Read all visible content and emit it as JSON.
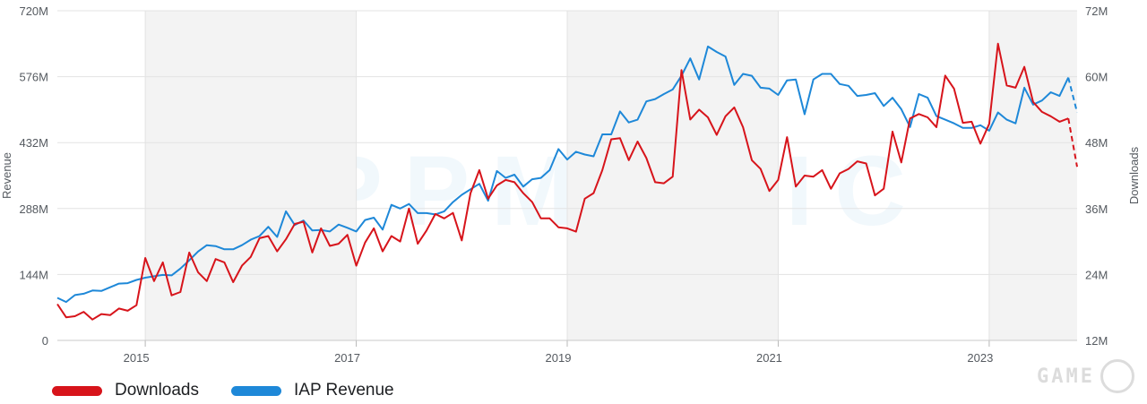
{
  "chart_data": {
    "type": "line",
    "watermark": "APPMAGIC",
    "y_left": {
      "label": "Revenue",
      "ticks": [
        "0",
        "144M",
        "288M",
        "432M",
        "576M",
        "720M"
      ],
      "range": [
        0,
        720
      ]
    },
    "y_right": {
      "label": "Downloads",
      "ticks": [
        "12M",
        "24M",
        "36M",
        "48M",
        "60M",
        "72M"
      ],
      "range": [
        12,
        72
      ]
    },
    "x_axis": {
      "ticks": [
        "2015",
        "2017",
        "2019",
        "2021",
        "2023"
      ],
      "range": [
        "2014-03",
        "2023-11"
      ]
    },
    "shaded_bands": [
      [
        "2015-01",
        "2016-12"
      ],
      [
        "2019-01",
        "2020-12"
      ],
      [
        "2023-01",
        "2023-11"
      ]
    ],
    "grid": true,
    "legend_position": "bottom-left",
    "series": [
      {
        "name": "Downloads",
        "axis": "right",
        "color": "#d7141b",
        "forecast_from": "2023-10",
        "points": [
          [
            "2014-03",
            18.6
          ],
          [
            "2014-04",
            16.2
          ],
          [
            "2014-05",
            16.4
          ],
          [
            "2014-06",
            17.2
          ],
          [
            "2014-07",
            15.8
          ],
          [
            "2014-08",
            16.8
          ],
          [
            "2014-09",
            16.6
          ],
          [
            "2014-10",
            17.8
          ],
          [
            "2014-11",
            17.4
          ],
          [
            "2014-12",
            18.4
          ],
          [
            "2015-01",
            27.0
          ],
          [
            "2015-02",
            22.8
          ],
          [
            "2015-03",
            26.2
          ],
          [
            "2015-04",
            20.2
          ],
          [
            "2015-05",
            20.8
          ],
          [
            "2015-06",
            28.0
          ],
          [
            "2015-07",
            24.4
          ],
          [
            "2015-08",
            22.8
          ],
          [
            "2015-09",
            26.8
          ],
          [
            "2015-10",
            26.2
          ],
          [
            "2015-11",
            22.6
          ],
          [
            "2015-12",
            25.6
          ],
          [
            "2016-01",
            27.2
          ],
          [
            "2016-02",
            30.6
          ],
          [
            "2016-03",
            31.0
          ],
          [
            "2016-04",
            28.2
          ],
          [
            "2016-05",
            30.4
          ],
          [
            "2016-06",
            33.2
          ],
          [
            "2016-07",
            33.6
          ],
          [
            "2016-08",
            28.0
          ],
          [
            "2016-09",
            32.4
          ],
          [
            "2016-10",
            29.2
          ],
          [
            "2016-11",
            29.6
          ],
          [
            "2016-12",
            31.2
          ],
          [
            "2017-01",
            25.6
          ],
          [
            "2017-02",
            29.8
          ],
          [
            "2017-03",
            32.4
          ],
          [
            "2017-04",
            28.2
          ],
          [
            "2017-05",
            31.0
          ],
          [
            "2017-06",
            30.0
          ],
          [
            "2017-07",
            36.0
          ],
          [
            "2017-08",
            29.6
          ],
          [
            "2017-09",
            32.0
          ],
          [
            "2017-10",
            35.0
          ],
          [
            "2017-11",
            34.2
          ],
          [
            "2017-12",
            35.2
          ],
          [
            "2018-01",
            30.2
          ],
          [
            "2018-02",
            38.8
          ],
          [
            "2018-03",
            43.0
          ],
          [
            "2018-04",
            37.8
          ],
          [
            "2018-05",
            40.2
          ],
          [
            "2018-06",
            41.2
          ],
          [
            "2018-07",
            40.8
          ],
          [
            "2018-08",
            38.8
          ],
          [
            "2018-09",
            37.2
          ],
          [
            "2018-10",
            34.2
          ],
          [
            "2018-11",
            34.2
          ],
          [
            "2018-12",
            32.6
          ],
          [
            "2019-01",
            32.4
          ],
          [
            "2019-02",
            31.8
          ],
          [
            "2019-03",
            37.8
          ],
          [
            "2019-04",
            38.8
          ],
          [
            "2019-05",
            43.0
          ],
          [
            "2019-06",
            48.6
          ],
          [
            "2019-07",
            48.8
          ],
          [
            "2019-08",
            44.8
          ],
          [
            "2019-09",
            48.2
          ],
          [
            "2019-10",
            45.2
          ],
          [
            "2019-11",
            40.8
          ],
          [
            "2019-12",
            40.6
          ],
          [
            "2020-01",
            41.8
          ],
          [
            "2020-02",
            61.2
          ],
          [
            "2020-03",
            52.2
          ],
          [
            "2020-04",
            54.0
          ],
          [
            "2020-05",
            52.6
          ],
          [
            "2020-06",
            49.4
          ],
          [
            "2020-07",
            52.8
          ],
          [
            "2020-08",
            54.4
          ],
          [
            "2020-09",
            50.8
          ],
          [
            "2020-10",
            44.8
          ],
          [
            "2020-11",
            43.2
          ],
          [
            "2020-12",
            39.2
          ],
          [
            "2021-01",
            41.2
          ],
          [
            "2021-02",
            49.0
          ],
          [
            "2021-03",
            40.0
          ],
          [
            "2021-04",
            42.0
          ],
          [
            "2021-05",
            41.8
          ],
          [
            "2021-06",
            43.0
          ],
          [
            "2021-07",
            39.6
          ],
          [
            "2021-08",
            42.4
          ],
          [
            "2021-09",
            43.2
          ],
          [
            "2021-10",
            44.6
          ],
          [
            "2021-11",
            44.2
          ],
          [
            "2021-12",
            38.4
          ],
          [
            "2022-01",
            39.6
          ],
          [
            "2022-02",
            50.0
          ],
          [
            "2022-03",
            44.4
          ],
          [
            "2022-04",
            52.4
          ],
          [
            "2022-05",
            53.2
          ],
          [
            "2022-06",
            52.6
          ],
          [
            "2022-07",
            50.8
          ],
          [
            "2022-08",
            60.2
          ],
          [
            "2022-09",
            57.8
          ],
          [
            "2022-10",
            51.6
          ],
          [
            "2022-11",
            51.8
          ],
          [
            "2022-12",
            47.8
          ],
          [
            "2023-01",
            51.4
          ],
          [
            "2023-02",
            66.0
          ],
          [
            "2023-03",
            58.4
          ],
          [
            "2023-04",
            58.0
          ],
          [
            "2023-05",
            61.8
          ],
          [
            "2023-06",
            55.4
          ],
          [
            "2023-07",
            53.6
          ],
          [
            "2023-08",
            52.8
          ],
          [
            "2023-09",
            51.8
          ],
          [
            "2023-10",
            52.4
          ],
          [
            "2023-11",
            43.6
          ]
        ]
      },
      {
        "name": "IAP Revenue",
        "axis": "left",
        "color": "#1e88d8",
        "forecast_from": "2023-10",
        "points": [
          [
            "2014-03",
            93
          ],
          [
            "2014-04",
            84
          ],
          [
            "2014-05",
            99
          ],
          [
            "2014-06",
            102
          ],
          [
            "2014-07",
            109
          ],
          [
            "2014-08",
            108
          ],
          [
            "2014-09",
            116
          ],
          [
            "2014-10",
            124
          ],
          [
            "2014-11",
            125
          ],
          [
            "2014-12",
            132
          ],
          [
            "2015-01",
            137
          ],
          [
            "2015-02",
            140
          ],
          [
            "2015-03",
            143
          ],
          [
            "2015-04",
            142
          ],
          [
            "2015-05",
            157
          ],
          [
            "2015-06",
            175
          ],
          [
            "2015-07",
            194
          ],
          [
            "2015-08",
            208
          ],
          [
            "2015-09",
            206
          ],
          [
            "2015-10",
            199
          ],
          [
            "2015-11",
            199
          ],
          [
            "2015-12",
            208
          ],
          [
            "2016-01",
            220
          ],
          [
            "2016-02",
            228
          ],
          [
            "2016-03",
            248
          ],
          [
            "2016-04",
            226
          ],
          [
            "2016-05",
            282
          ],
          [
            "2016-06",
            252
          ],
          [
            "2016-07",
            262
          ],
          [
            "2016-08",
            240
          ],
          [
            "2016-09",
            241
          ],
          [
            "2016-10",
            238
          ],
          [
            "2016-11",
            253
          ],
          [
            "2016-12",
            246
          ],
          [
            "2017-01",
            238
          ],
          [
            "2017-02",
            263
          ],
          [
            "2017-03",
            268
          ],
          [
            "2017-04",
            242
          ],
          [
            "2017-05",
            296
          ],
          [
            "2017-06",
            288
          ],
          [
            "2017-07",
            298
          ],
          [
            "2017-08",
            278
          ],
          [
            "2017-09",
            278
          ],
          [
            "2017-10",
            275
          ],
          [
            "2017-11",
            282
          ],
          [
            "2017-12",
            302
          ],
          [
            "2018-01",
            318
          ],
          [
            "2018-02",
            330
          ],
          [
            "2018-03",
            342
          ],
          [
            "2018-04",
            305
          ],
          [
            "2018-05",
            370
          ],
          [
            "2018-06",
            355
          ],
          [
            "2018-07",
            362
          ],
          [
            "2018-08",
            336
          ],
          [
            "2018-09",
            352
          ],
          [
            "2018-10",
            355
          ],
          [
            "2018-11",
            372
          ],
          [
            "2018-12",
            418
          ],
          [
            "2019-01",
            395
          ],
          [
            "2019-02",
            412
          ],
          [
            "2019-03",
            406
          ],
          [
            "2019-04",
            402
          ],
          [
            "2019-05",
            450
          ],
          [
            "2019-06",
            450
          ],
          [
            "2019-07",
            500
          ],
          [
            "2019-08",
            476
          ],
          [
            "2019-09",
            482
          ],
          [
            "2019-10",
            522
          ],
          [
            "2019-11",
            527
          ],
          [
            "2019-12",
            538
          ],
          [
            "2020-01",
            548
          ],
          [
            "2020-02",
            578
          ],
          [
            "2020-03",
            616
          ],
          [
            "2020-04",
            570
          ],
          [
            "2020-05",
            642
          ],
          [
            "2020-06",
            630
          ],
          [
            "2020-07",
            620
          ],
          [
            "2020-08",
            558
          ],
          [
            "2020-09",
            582
          ],
          [
            "2020-10",
            578
          ],
          [
            "2020-11",
            552
          ],
          [
            "2020-12",
            550
          ],
          [
            "2021-01",
            536
          ],
          [
            "2021-02",
            568
          ],
          [
            "2021-03",
            570
          ],
          [
            "2021-04",
            494
          ],
          [
            "2021-05",
            570
          ],
          [
            "2021-06",
            582
          ],
          [
            "2021-07",
            582
          ],
          [
            "2021-08",
            560
          ],
          [
            "2021-09",
            556
          ],
          [
            "2021-10",
            534
          ],
          [
            "2021-11",
            536
          ],
          [
            "2021-12",
            540
          ],
          [
            "2022-01",
            512
          ],
          [
            "2022-02",
            530
          ],
          [
            "2022-03",
            505
          ],
          [
            "2022-04",
            466
          ],
          [
            "2022-05",
            538
          ],
          [
            "2022-06",
            530
          ],
          [
            "2022-07",
            490
          ],
          [
            "2022-08",
            482
          ],
          [
            "2022-09",
            474
          ],
          [
            "2022-10",
            464
          ],
          [
            "2022-11",
            464
          ],
          [
            "2022-12",
            470
          ],
          [
            "2023-01",
            458
          ],
          [
            "2023-02",
            498
          ],
          [
            "2023-03",
            482
          ],
          [
            "2023-04",
            474
          ],
          [
            "2023-05",
            552
          ],
          [
            "2023-06",
            515
          ],
          [
            "2023-07",
            524
          ],
          [
            "2023-08",
            542
          ],
          [
            "2023-09",
            534
          ],
          [
            "2023-10",
            574
          ],
          [
            "2023-11",
            498
          ]
        ]
      }
    ]
  },
  "legend": [
    {
      "label": "Downloads",
      "color": "#d7141b"
    },
    {
      "label": "IAP Revenue",
      "color": "#1e88d8"
    }
  ],
  "branding": {
    "watermark": "APPMAGIC",
    "logo_text": "GAME"
  }
}
